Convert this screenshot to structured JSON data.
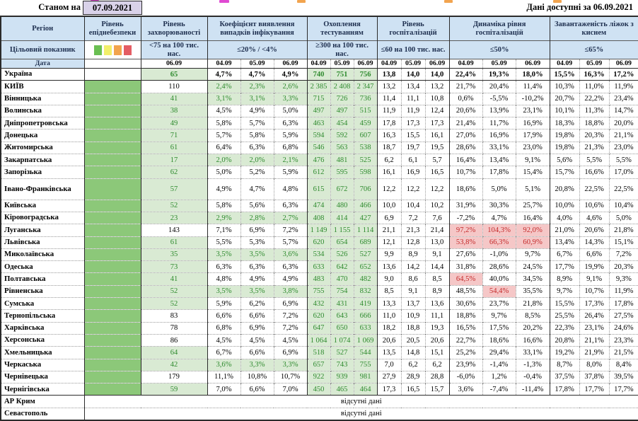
{
  "colors": {
    "header_bg": "#cfe2f3",
    "date_box_bg": "#d9d2e9",
    "epid_green": "#8cc879",
    "cell_green_bg": "#d9ead3",
    "green_text": "#2f8b2f",
    "red_bg": "#f5c7c7",
    "red_text": "#c42a2a",
    "header_text": "#1f3050"
  },
  "top": {
    "as_of_label": "Станом на",
    "as_of_date": "07.09.2021",
    "available": "Дані доступні за 06.09.2021"
  },
  "columns": {
    "region": "Регіон",
    "target_label": "Цільовий показник",
    "date_label": "Дата",
    "risk_scale": [
      "#6abf52",
      "#f2ef6b",
      "#f2a44e",
      "#e45d64"
    ],
    "groups": [
      {
        "key": "epid",
        "title": "Рівень епіднебезпеки",
        "target": "",
        "dates": []
      },
      {
        "key": "inc",
        "title": "Рівень захворюваності",
        "target": "<75 на 100 тис. нас.",
        "dates": [
          "06.09"
        ]
      },
      {
        "key": "coef",
        "title": "Коефіцієнт виявлення випадків інфікування",
        "target": "≤20% / <4%",
        "dates": [
          "04.09",
          "05.09",
          "06.09"
        ]
      },
      {
        "key": "test",
        "title": "Охоплення тестуванням",
        "target": "≥300 на 100 тис. нас.",
        "dates": [
          "04.09",
          "05.09",
          "06.09"
        ]
      },
      {
        "key": "hosp",
        "title": "Рівень госпіталізацій",
        "target": "≤60 на 100 тис. нас.",
        "dates": [
          "04.09",
          "05.09",
          "06.09"
        ]
      },
      {
        "key": "dyn",
        "title": "Динаміка рівня госпіталізацій",
        "target": "≤50%",
        "dates": [
          "04.09",
          "05.09",
          "06.09"
        ]
      },
      {
        "key": "load",
        "title": "Завантаженість ліжок з киснем",
        "target": "≤65%",
        "dates": [
          "04.09",
          "05.09",
          "06.09"
        ]
      }
    ]
  },
  "rows": [
    {
      "name": "Україна",
      "summary": true,
      "inc": "65",
      "inc_s": "g",
      "coef": [
        "4,7%",
        "4,7%",
        "4,9%"
      ],
      "coef_s": "w",
      "test": [
        "740",
        "751",
        "756"
      ],
      "hosp": [
        "13,8",
        "14,0",
        "14,0"
      ],
      "dyn": [
        "22,4%",
        "19,3%",
        "18,0%"
      ],
      "load": [
        "15,5%",
        "16,3%",
        "17,2%"
      ]
    },
    {
      "name": "КИЇВ",
      "inc": "110",
      "inc_s": "w",
      "coef": [
        "2,4%",
        "2,3%",
        "2,6%"
      ],
      "coef_s": "g",
      "test": [
        "2 385",
        "2 408",
        "2 347"
      ],
      "hosp": [
        "13,2",
        "13,4",
        "13,2"
      ],
      "dyn": [
        "21,7%",
        "20,4%",
        "11,4%"
      ],
      "load": [
        "10,3%",
        "11,0%",
        "11,9%"
      ]
    },
    {
      "name": "Вінницька",
      "inc": "41",
      "inc_s": "g",
      "coef": [
        "3,1%",
        "3,1%",
        "3,3%"
      ],
      "coef_s": "g",
      "test": [
        "715",
        "726",
        "736"
      ],
      "hosp": [
        "11,4",
        "11,1",
        "10,8"
      ],
      "dyn": [
        "0,6%",
        "-5,5%",
        "-10,2%"
      ],
      "load": [
        "20,7%",
        "22,2%",
        "23,4%"
      ]
    },
    {
      "name": "Волинська",
      "inc": "38",
      "inc_s": "g",
      "coef": [
        "4,5%",
        "4,9%",
        "5,0%"
      ],
      "coef_s": "w",
      "test": [
        "497",
        "497",
        "515"
      ],
      "hosp": [
        "11,9",
        "11,9",
        "12,4"
      ],
      "dyn": [
        "20,6%",
        "13,9%",
        "23,1%"
      ],
      "load": [
        "10,1%",
        "11,3%",
        "14,7%"
      ]
    },
    {
      "name": "Дніпропетровська",
      "inc": "49",
      "inc_s": "g",
      "coef": [
        "5,8%",
        "5,7%",
        "6,3%"
      ],
      "coef_s": "w",
      "test": [
        "463",
        "454",
        "459"
      ],
      "hosp": [
        "17,8",
        "17,3",
        "17,3"
      ],
      "dyn": [
        "21,4%",
        "11,7%",
        "16,9%"
      ],
      "load": [
        "18,3%",
        "18,8%",
        "20,0%"
      ]
    },
    {
      "name": "Донецька",
      "inc": "71",
      "inc_s": "g",
      "coef": [
        "5,7%",
        "5,8%",
        "5,9%"
      ],
      "coef_s": "w",
      "test": [
        "594",
        "592",
        "607"
      ],
      "hosp": [
        "16,3",
        "15,5",
        "16,1"
      ],
      "dyn": [
        "27,0%",
        "16,9%",
        "17,9%"
      ],
      "load": [
        "19,8%",
        "20,3%",
        "21,1%"
      ]
    },
    {
      "name": "Житомирська",
      "inc": "61",
      "inc_s": "g",
      "coef": [
        "6,4%",
        "6,3%",
        "6,8%"
      ],
      "coef_s": "w",
      "test": [
        "546",
        "563",
        "538"
      ],
      "hosp": [
        "18,7",
        "19,7",
        "19,5"
      ],
      "dyn": [
        "28,6%",
        "33,1%",
        "23,0%"
      ],
      "load": [
        "19,8%",
        "21,3%",
        "23,0%"
      ]
    },
    {
      "name": "Закарпатська",
      "inc": "17",
      "inc_s": "g",
      "coef": [
        "2,0%",
        "2,0%",
        "2,1%"
      ],
      "coef_s": "g",
      "test": [
        "476",
        "481",
        "525"
      ],
      "hosp": [
        "6,2",
        "6,1",
        "5,7"
      ],
      "dyn": [
        "16,4%",
        "13,4%",
        "9,1%"
      ],
      "load": [
        "5,6%",
        "5,5%",
        "5,5%"
      ]
    },
    {
      "name": "Запорізька",
      "inc": "62",
      "inc_s": "g",
      "coef": [
        "5,0%",
        "5,2%",
        "5,9%"
      ],
      "coef_s": "w",
      "test": [
        "612",
        "595",
        "598"
      ],
      "hosp": [
        "16,1",
        "16,9",
        "16,5"
      ],
      "dyn": [
        "10,7%",
        "17,8%",
        "15,4%"
      ],
      "load": [
        "15,7%",
        "16,6%",
        "17,0%"
      ]
    },
    {
      "name": "Івано-Франківська",
      "tall": true,
      "inc": "57",
      "inc_s": "g",
      "coef": [
        "4,9%",
        "4,7%",
        "4,8%"
      ],
      "coef_s": "w",
      "test": [
        "615",
        "672",
        "706"
      ],
      "hosp": [
        "12,2",
        "12,2",
        "12,2"
      ],
      "dyn": [
        "18,6%",
        "5,0%",
        "5,1%"
      ],
      "load": [
        "20,8%",
        "22,5%",
        "22,5%"
      ]
    },
    {
      "name": "Київська",
      "inc": "52",
      "inc_s": "g",
      "coef": [
        "5,8%",
        "5,6%",
        "6,3%"
      ],
      "coef_s": "w",
      "test": [
        "474",
        "480",
        "466"
      ],
      "hosp": [
        "10,0",
        "10,4",
        "10,2"
      ],
      "dyn": [
        "31,9%",
        "30,3%",
        "25,7%"
      ],
      "load": [
        "10,0%",
        "10,6%",
        "10,4%"
      ]
    },
    {
      "name": "Кіровоградська",
      "inc": "23",
      "inc_s": "g",
      "coef": [
        "2,9%",
        "2,8%",
        "2,7%"
      ],
      "coef_s": "g",
      "test": [
        "408",
        "414",
        "427"
      ],
      "hosp": [
        "6,9",
        "7,2",
        "7,6"
      ],
      "dyn": [
        "-7,2%",
        "4,7%",
        "16,4%"
      ],
      "load": [
        "4,0%",
        "4,6%",
        "5,0%"
      ]
    },
    {
      "name": "Луганська",
      "inc": "143",
      "inc_s": "w",
      "coef": [
        "7,1%",
        "6,9%",
        "7,2%"
      ],
      "coef_s": "w",
      "test": [
        "1 149",
        "1 155",
        "1 114"
      ],
      "hosp": [
        "21,1",
        "21,3",
        "21,4"
      ],
      "dyn": [
        "97,2%",
        "104,3%",
        "92,0%"
      ],
      "dyn_s": [
        "r",
        "r",
        "r"
      ],
      "load": [
        "21,0%",
        "20,6%",
        "21,8%"
      ]
    },
    {
      "name": "Львівська",
      "inc": "61",
      "inc_s": "g",
      "coef": [
        "5,5%",
        "5,3%",
        "5,7%"
      ],
      "coef_s": "w",
      "test": [
        "620",
        "654",
        "689"
      ],
      "hosp": [
        "12,1",
        "12,8",
        "13,0"
      ],
      "dyn": [
        "53,8%",
        "66,3%",
        "60,9%"
      ],
      "dyn_s": [
        "r",
        "r",
        "r"
      ],
      "load": [
        "13,4%",
        "14,3%",
        "15,1%"
      ]
    },
    {
      "name": "Миколаївська",
      "inc": "35",
      "inc_s": "g",
      "coef": [
        "3,5%",
        "3,5%",
        "3,6%"
      ],
      "coef_s": "g",
      "test": [
        "534",
        "526",
        "527"
      ],
      "hosp": [
        "9,9",
        "8,9",
        "9,1"
      ],
      "dyn": [
        "27,6%",
        "-1,0%",
        "9,7%"
      ],
      "load": [
        "6,7%",
        "6,6%",
        "7,2%"
      ]
    },
    {
      "name": "Одеська",
      "inc": "73",
      "inc_s": "g",
      "coef": [
        "6,3%",
        "6,3%",
        "6,3%"
      ],
      "coef_s": "w",
      "test": [
        "633",
        "642",
        "652"
      ],
      "hosp": [
        "13,6",
        "14,2",
        "14,4"
      ],
      "dyn": [
        "31,8%",
        "28,6%",
        "24,5%"
      ],
      "load": [
        "17,7%",
        "19,9%",
        "20,3%"
      ]
    },
    {
      "name": "Полтавська",
      "inc": "41",
      "inc_s": "g",
      "coef": [
        "4,8%",
        "4,9%",
        "4,9%"
      ],
      "coef_s": "w",
      "test": [
        "483",
        "470",
        "482"
      ],
      "hosp": [
        "9,0",
        "8,6",
        "8,5"
      ],
      "dyn": [
        "64,5%",
        "40,0%",
        "34,5%"
      ],
      "dyn_s": [
        "r",
        "w",
        "w"
      ],
      "load": [
        "8,9%",
        "9,1%",
        "9,3%"
      ]
    },
    {
      "name": "Рівненська",
      "inc": "52",
      "inc_s": "g",
      "coef": [
        "3,5%",
        "3,5%",
        "3,8%"
      ],
      "coef_s": "g",
      "test": [
        "755",
        "754",
        "832"
      ],
      "hosp": [
        "8,5",
        "9,1",
        "8,9"
      ],
      "dyn": [
        "48,5%",
        "54,4%",
        "35,5%"
      ],
      "dyn_s": [
        "w",
        "r",
        "w"
      ],
      "load": [
        "9,7%",
        "10,7%",
        "11,9%"
      ]
    },
    {
      "name": "Сумська",
      "inc": "52",
      "inc_s": "g",
      "coef": [
        "5,9%",
        "6,2%",
        "6,9%"
      ],
      "coef_s": "w",
      "test": [
        "432",
        "431",
        "419"
      ],
      "hosp": [
        "13,3",
        "13,7",
        "13,6"
      ],
      "dyn": [
        "30,6%",
        "23,7%",
        "21,8%"
      ],
      "load": [
        "15,5%",
        "17,3%",
        "17,8%"
      ]
    },
    {
      "name": "Тернопільська",
      "inc": "83",
      "inc_s": "w",
      "coef": [
        "6,6%",
        "6,6%",
        "7,2%"
      ],
      "coef_s": "w",
      "test": [
        "620",
        "643",
        "666"
      ],
      "hosp": [
        "11,0",
        "10,9",
        "11,1"
      ],
      "dyn": [
        "18,8%",
        "9,7%",
        "8,5%"
      ],
      "load": [
        "25,5%",
        "26,4%",
        "27,5%"
      ]
    },
    {
      "name": "Харківська",
      "inc": "78",
      "inc_s": "w",
      "coef": [
        "6,8%",
        "6,9%",
        "7,2%"
      ],
      "coef_s": "w",
      "test": [
        "647",
        "650",
        "633"
      ],
      "hosp": [
        "18,2",
        "18,8",
        "19,3"
      ],
      "dyn": [
        "16,5%",
        "17,5%",
        "20,2%"
      ],
      "load": [
        "22,3%",
        "23,1%",
        "24,6%"
      ]
    },
    {
      "name": "Херсонська",
      "inc": "86",
      "inc_s": "w",
      "coef": [
        "4,5%",
        "4,5%",
        "4,5%"
      ],
      "coef_s": "w",
      "test": [
        "1 064",
        "1 074",
        "1 069"
      ],
      "hosp": [
        "20,6",
        "20,5",
        "20,6"
      ],
      "dyn": [
        "22,7%",
        "18,6%",
        "16,6%"
      ],
      "load": [
        "20,8%",
        "21,1%",
        "23,3%"
      ]
    },
    {
      "name": "Хмельницька",
      "inc": "64",
      "inc_s": "g",
      "coef": [
        "6,7%",
        "6,6%",
        "6,9%"
      ],
      "coef_s": "w",
      "test": [
        "518",
        "527",
        "544"
      ],
      "hosp": [
        "13,5",
        "14,8",
        "15,1"
      ],
      "dyn": [
        "25,2%",
        "29,4%",
        "33,1%"
      ],
      "load": [
        "19,2%",
        "21,9%",
        "21,5%"
      ]
    },
    {
      "name": "Черкаська",
      "inc": "42",
      "inc_s": "g",
      "coef": [
        "3,6%",
        "3,3%",
        "3,3%"
      ],
      "coef_s": "g",
      "test": [
        "657",
        "743",
        "755"
      ],
      "hosp": [
        "7,0",
        "6,2",
        "6,2"
      ],
      "dyn": [
        "23,9%",
        "-1,4%",
        "-1,3%"
      ],
      "load": [
        "8,7%",
        "8,0%",
        "8,4%"
      ]
    },
    {
      "name": "Чернівецька",
      "inc": "179",
      "inc_s": "w",
      "coef": [
        "11,1%",
        "10,8%",
        "10,7%"
      ],
      "coef_s": "w",
      "test": [
        "922",
        "939",
        "981"
      ],
      "hosp": [
        "27,9",
        "28,9",
        "28,8"
      ],
      "dyn": [
        "-6,0%",
        "1,2%",
        "-0,4%"
      ],
      "load": [
        "37,5%",
        "37,8%",
        "39,5%"
      ]
    },
    {
      "name": "Чернігівська",
      "inc": "59",
      "inc_s": "g",
      "coef": [
        "7,0%",
        "6,6%",
        "7,0%"
      ],
      "coef_s": "w",
      "test": [
        "450",
        "465",
        "464"
      ],
      "hosp": [
        "17,3",
        "16,5",
        "15,7"
      ],
      "dyn": [
        "3,6%",
        "-7,4%",
        "-11,4%"
      ],
      "load": [
        "17,8%",
        "17,7%",
        "17,7%"
      ]
    }
  ],
  "no_data": {
    "text": "відсутні дані",
    "rows": [
      "АР Крим",
      "Севастополь"
    ]
  }
}
